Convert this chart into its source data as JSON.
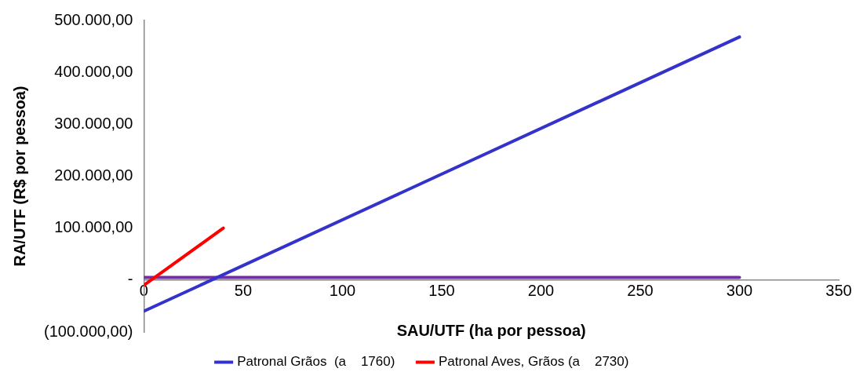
{
  "chart_data": {
    "type": "line",
    "xlabel": "SAU/UTF (ha por pessoa)",
    "ylabel": "RA/UTF (R$ por pessoa)",
    "xlim": [
      0,
      350
    ],
    "xticks": [
      0,
      50,
      100,
      150,
      200,
      250,
      300,
      350
    ],
    "ylim": [
      -100000,
      500000
    ],
    "yticks": [
      {
        "value": -100000,
        "label": "(100.000,00)"
      },
      {
        "value": 0,
        "label": "-"
      },
      {
        "value": 100000,
        "label": "100.000,00"
      },
      {
        "value": 200000,
        "label": "200.000,00"
      },
      {
        "value": 300000,
        "label": "300.000,00"
      },
      {
        "value": 400000,
        "label": "400.000,00"
      },
      {
        "value": 500000,
        "label": "500.000,00"
      }
    ],
    "series": [
      {
        "name": "Patronal Grãos  (a    1760)",
        "color": "#3333cc",
        "x": [
          0,
          300
        ],
        "values": [
          -60000,
          468000
        ]
      },
      {
        "name": "Patronal Aves, Grãos (a    2730)",
        "color": "#ff0000",
        "x": [
          0,
          40
        ],
        "values": [
          -10000,
          100000
        ]
      },
      {
        "color": "#7030a0",
        "x": [
          0,
          300
        ],
        "values": [
          5000,
          5000
        ]
      }
    ],
    "grid": false,
    "legend": "bottom",
    "marker": "none",
    "line_style": "solid"
  }
}
